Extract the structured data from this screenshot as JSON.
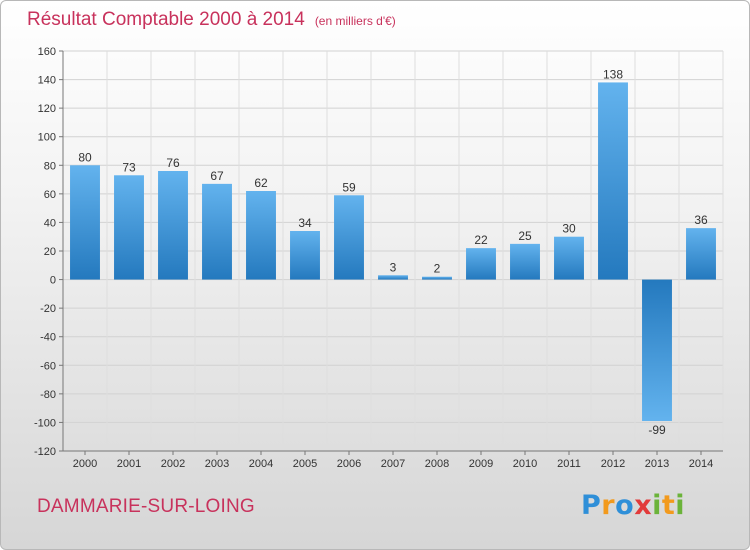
{
  "title": "Résultat Comptable 2000 à 2014",
  "subtitle": "(en milliers d'€)",
  "town": "DAMMARIE-SUR-LOING",
  "logo": [
    "P",
    "r",
    "o",
    "x",
    "i",
    "t",
    "i"
  ],
  "logo_colors": [
    "#2f8fd8",
    "#f29a1d",
    "#2f8fd8",
    "#e23b3b",
    "#6bb33a",
    "#f29a1d",
    "#6bb33a"
  ],
  "chart_data": {
    "type": "bar",
    "categories": [
      "2000",
      "2001",
      "2002",
      "2003",
      "2004",
      "2005",
      "2006",
      "2007",
      "2008",
      "2009",
      "2010",
      "2011",
      "2012",
      "2013",
      "2014"
    ],
    "values": [
      80,
      73,
      76,
      67,
      62,
      34,
      59,
      3,
      2,
      22,
      25,
      30,
      138,
      -99,
      36
    ],
    "data_labels": [
      "80",
      "73",
      "76",
      "67",
      "62",
      "34",
      "59",
      "3",
      "2",
      "22",
      "25",
      "30",
      "138",
      "-99",
      "36"
    ],
    "ylim": [
      -120,
      160
    ],
    "yticks": [
      -120,
      -100,
      -80,
      -60,
      -40,
      -20,
      0,
      20,
      40,
      60,
      80,
      100,
      120,
      140,
      160
    ],
    "ytick_labels": [
      "-120",
      "-100",
      "-80",
      "-60",
      "-40",
      "-20",
      "0",
      "20",
      "40",
      "60",
      "80",
      "100",
      "120",
      "140",
      "160"
    ],
    "grid": true,
    "bar_color": "#3d98dc",
    "bar_color_light": "#61b2ee",
    "bar_color_dark": "#2478bd"
  }
}
